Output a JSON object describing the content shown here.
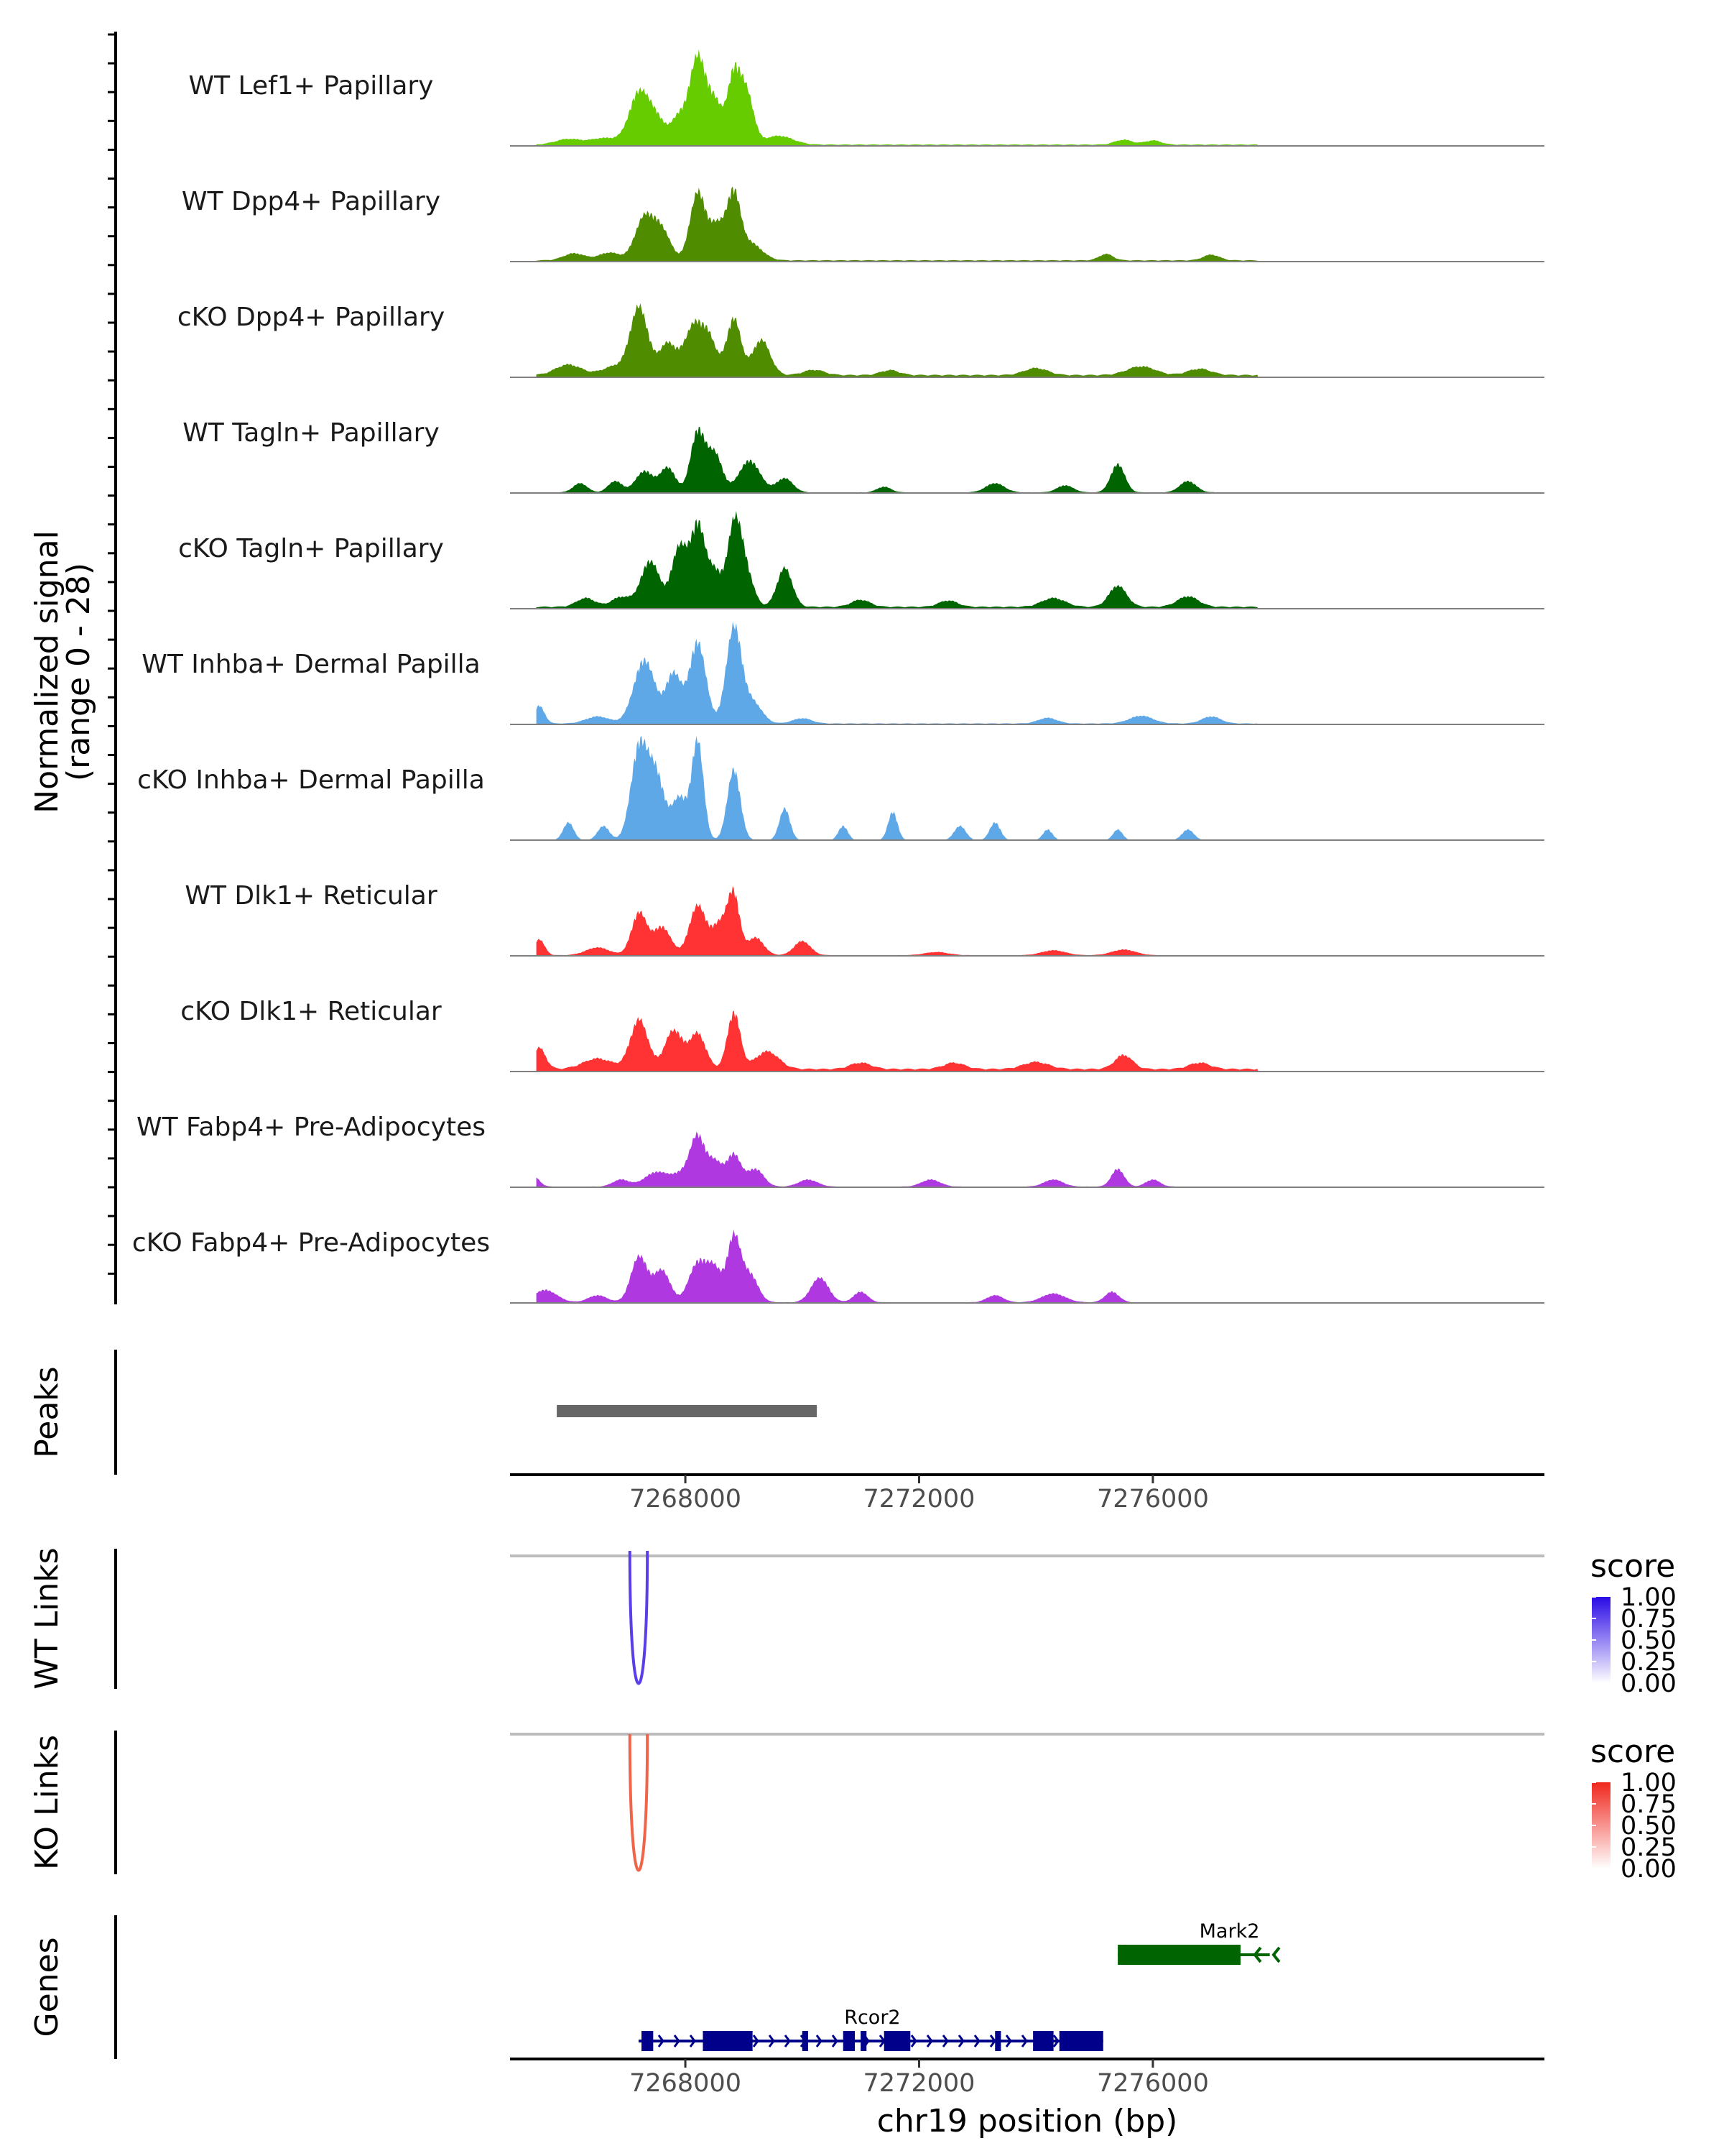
{
  "chart_data": {
    "type": "area",
    "title": "",
    "ylabel_line1": "Normalized signal",
    "ylabel_line2": "(range 0 - 28)",
    "ylim": [
      0,
      28
    ],
    "xlabel": "chr19 position (bp)",
    "xlim": [
      7265000,
      7282700
    ],
    "x_ticks": [
      7268000,
      7272000,
      7276000
    ],
    "x_tick_labels": [
      "7268000",
      "7272000",
      "7276000"
    ],
    "peak_center_positions": [
      7267210,
      7268210,
      7269010,
      7268830
    ],
    "tracks": [
      {
        "name": "WT Lef1+ Papillary",
        "color": "#66cc00",
        "peaks": [
          [
            7266000,
            1.6,
            220
          ],
          [
            7266600,
            1.8,
            220
          ],
          [
            7267100,
            1.6,
            200
          ],
          [
            7267210,
            13,
            160
          ],
          [
            7267500,
            7,
            150
          ],
          [
            7267900,
            8,
            140
          ],
          [
            7268210,
            24,
            130
          ],
          [
            7268500,
            12,
            130
          ],
          [
            7268830,
            19,
            110
          ],
          [
            7269050,
            14,
            120
          ],
          [
            7269600,
            2.5,
            240
          ],
          [
            7275500,
            1.4,
            150
          ],
          [
            7276000,
            1.2,
            140
          ]
        ],
        "base": 0.4
      },
      {
        "name": "WT Dpp4+ Papillary",
        "color": "#4f8c00",
        "peaks": [
          [
            7266100,
            2.0,
            180
          ],
          [
            7266700,
            2.2,
            180
          ],
          [
            7267300,
            12,
            160
          ],
          [
            7267600,
            8,
            150
          ],
          [
            7268210,
            19,
            130
          ],
          [
            7268550,
            10,
            140
          ],
          [
            7268830,
            17,
            110
          ],
          [
            7269100,
            5,
            200
          ],
          [
            7275200,
            1.8,
            120
          ],
          [
            7277000,
            1.6,
            140
          ]
        ],
        "base": 0.4
      },
      {
        "name": "cKO Dpp4+ Papillary",
        "color": "#4f8c00",
        "peaks": [
          [
            7266000,
            3.0,
            220
          ],
          [
            7266800,
            2.5,
            220
          ],
          [
            7267210,
            19,
            150
          ],
          [
            7267700,
            9,
            150
          ],
          [
            7268130,
            13,
            150
          ],
          [
            7268400,
            10,
            140
          ],
          [
            7268830,
            16,
            120
          ],
          [
            7269300,
            10,
            150
          ],
          [
            7270200,
            1.5,
            180
          ],
          [
            7271500,
            1.4,
            160
          ],
          [
            7274000,
            2.0,
            200
          ],
          [
            7275800,
            2.5,
            240
          ],
          [
            7276800,
            1.8,
            200
          ]
        ],
        "base": 0.7
      },
      {
        "name": "WT Tagln+ Papillary",
        "color": "#006400",
        "peaks": [
          [
            7266200,
            2.6,
            120
          ],
          [
            7266800,
            3.2,
            120
          ],
          [
            7267300,
            6,
            150
          ],
          [
            7267700,
            7,
            130
          ],
          [
            7268210,
            17,
            120
          ],
          [
            7268500,
            11,
            130
          ],
          [
            7269100,
            9,
            180
          ],
          [
            7269700,
            4,
            140
          ],
          [
            7271400,
            1.6,
            120
          ],
          [
            7273300,
            2.6,
            160
          ],
          [
            7274500,
            2.0,
            140
          ],
          [
            7275400,
            8,
            120
          ],
          [
            7276600,
            3.2,
            140
          ]
        ],
        "base": 0.2
      },
      {
        "name": "cKO Tagln+ Papillary",
        "color": "#006400",
        "peaks": [
          [
            7266300,
            2.5,
            160
          ],
          [
            7266900,
            2.8,
            160
          ],
          [
            7267400,
            13,
            160
          ],
          [
            7267900,
            17,
            130
          ],
          [
            7268210,
            22,
            120
          ],
          [
            7268500,
            10,
            140
          ],
          [
            7268830,
            19,
            110
          ],
          [
            7269000,
            12,
            140
          ],
          [
            7269700,
            11,
            130
          ],
          [
            7271000,
            2.0,
            160
          ],
          [
            7272500,
            1.8,
            160
          ],
          [
            7274300,
            2.5,
            200
          ],
          [
            7275400,
            6,
            150
          ],
          [
            7276600,
            3.0,
            180
          ]
        ],
        "base": 0.6
      },
      {
        "name": "WT Inhba+ Dermal Papilla",
        "color": "#5fa8e8",
        "peaks": [
          [
            7265500,
            5,
            90
          ],
          [
            7266500,
            2.0,
            200
          ],
          [
            7267300,
            18,
            180
          ],
          [
            7267800,
            14,
            130
          ],
          [
            7268210,
            23,
            140
          ],
          [
            7268830,
            27,
            130
          ],
          [
            7269150,
            6,
            160
          ],
          [
            7270000,
            1.5,
            160
          ],
          [
            7274200,
            1.6,
            160
          ],
          [
            7275800,
            2.2,
            200
          ],
          [
            7277000,
            2.0,
            160
          ]
        ],
        "base": 0.3
      },
      {
        "name": "cKO Inhba+ Dermal Papilla",
        "color": "#5fa8e8",
        "peaks": [
          [
            7266000,
            5,
            90
          ],
          [
            7266600,
            4,
            100
          ],
          [
            7267210,
            26,
            140
          ],
          [
            7267500,
            18,
            140
          ],
          [
            7267900,
            12,
            130
          ],
          [
            7268210,
            28,
            100
          ],
          [
            7268830,
            20,
            110
          ],
          [
            7269700,
            9,
            90
          ],
          [
            7270700,
            4,
            80
          ],
          [
            7271550,
            8,
            80
          ],
          [
            7272700,
            4,
            100
          ],
          [
            7273300,
            5,
            90
          ],
          [
            7274200,
            3,
            80
          ],
          [
            7275400,
            3,
            80
          ],
          [
            7276600,
            3,
            100
          ]
        ],
        "base": 0.0
      },
      {
        "name": "WT Dlk1+ Reticular",
        "color": "#ff3333",
        "peaks": [
          [
            7265500,
            4.5,
            90
          ],
          [
            7266500,
            2.2,
            200
          ],
          [
            7267210,
            12,
            130
          ],
          [
            7267600,
            8,
            150
          ],
          [
            7268210,
            14,
            140
          ],
          [
            7268600,
            9,
            140
          ],
          [
            7268830,
            16,
            100
          ],
          [
            7269200,
            5,
            140
          ],
          [
            7270000,
            4,
            140
          ],
          [
            7272300,
            0.9,
            200
          ],
          [
            7274300,
            1.4,
            200
          ],
          [
            7275500,
            1.6,
            200
          ]
        ],
        "base": 0.2
      },
      {
        "name": "cKO Dlk1+ Reticular",
        "color": "#ff3333",
        "peaks": [
          [
            7265500,
            6,
            110
          ],
          [
            7266500,
            3,
            250
          ],
          [
            7267210,
            14,
            150
          ],
          [
            7267800,
            11,
            150
          ],
          [
            7268210,
            10,
            140
          ],
          [
            7268830,
            16,
            110
          ],
          [
            7269400,
            5,
            200
          ],
          [
            7271000,
            1.8,
            180
          ],
          [
            7272600,
            1.8,
            180
          ],
          [
            7274000,
            2.0,
            220
          ],
          [
            7275500,
            4,
            150
          ],
          [
            7276800,
            1.8,
            180
          ]
        ],
        "base": 0.8
      },
      {
        "name": "WT Fabp4+ Pre-Adipocytes",
        "color": "#b038e0",
        "peaks": [
          [
            7265400,
            3,
            100
          ],
          [
            7266900,
            2.0,
            140
          ],
          [
            7267500,
            4,
            200
          ],
          [
            7268000,
            4,
            200
          ],
          [
            7268210,
            12,
            120
          ],
          [
            7268500,
            7,
            130
          ],
          [
            7268830,
            9,
            120
          ],
          [
            7269200,
            5,
            140
          ],
          [
            7270100,
            2.0,
            160
          ],
          [
            7272200,
            2.0,
            160
          ],
          [
            7274300,
            2.0,
            160
          ],
          [
            7275400,
            5,
            110
          ],
          [
            7276000,
            2.0,
            120
          ]
        ],
        "base": 0.2
      },
      {
        "name": "cKO Fabp4+ Pre-Adipocytes",
        "color": "#b038e0",
        "peaks": [
          [
            7265600,
            3.5,
            200
          ],
          [
            7266500,
            2.0,
            160
          ],
          [
            7267210,
            13,
            140
          ],
          [
            7267600,
            9,
            140
          ],
          [
            7268210,
            11,
            150
          ],
          [
            7268500,
            9,
            130
          ],
          [
            7268830,
            18,
            110
          ],
          [
            7269100,
            8,
            140
          ],
          [
            7270300,
            7,
            150
          ],
          [
            7271000,
            3,
            120
          ],
          [
            7273300,
            2.0,
            140
          ],
          [
            7274300,
            2.5,
            200
          ],
          [
            7275300,
            3,
            120
          ]
        ],
        "base": 0.2
      }
    ],
    "peaks_label": "Peaks",
    "peak_regions": [
      [
        7265800,
        7270250
      ]
    ],
    "wt_links_label": "WT Links",
    "ko_links_label": "KO Links",
    "wt_link": {
      "start": 7267050,
      "end": 7267350,
      "score": 0.85,
      "color": "#5c3ee8"
    },
    "ko_link": {
      "start": 7267050,
      "end": 7267350,
      "score": 0.8,
      "color": "#f0644a"
    },
    "legend_title": "score",
    "legend_ticks": [
      "1.00",
      "0.75",
      "0.50",
      "0.25",
      "0.00"
    ],
    "wt_legend_color": "#2a0ae6",
    "ko_legend_color": "#f0281e",
    "genes_label": "Genes",
    "genes": [
      {
        "name": "Mark2",
        "start": 7275400,
        "end": 7277500,
        "strand": "-",
        "color": "#006400",
        "exons": [
          [
            7275400,
            7277500
          ]
        ],
        "arrow_end": 7278000
      },
      {
        "name": "Rcor2",
        "start": 7267200,
        "end": 7275150,
        "strand": "+",
        "color": "#00008b",
        "exons": [
          [
            7267250,
            7267450
          ],
          [
            7268300,
            7269150
          ],
          [
            7270000,
            7270100
          ],
          [
            7270700,
            7270900
          ],
          [
            7271000,
            7271100
          ],
          [
            7271400,
            7271850
          ],
          [
            7273300,
            7273400
          ],
          [
            7273950,
            7274300
          ],
          [
            7274400,
            7275150
          ]
        ]
      }
    ]
  }
}
